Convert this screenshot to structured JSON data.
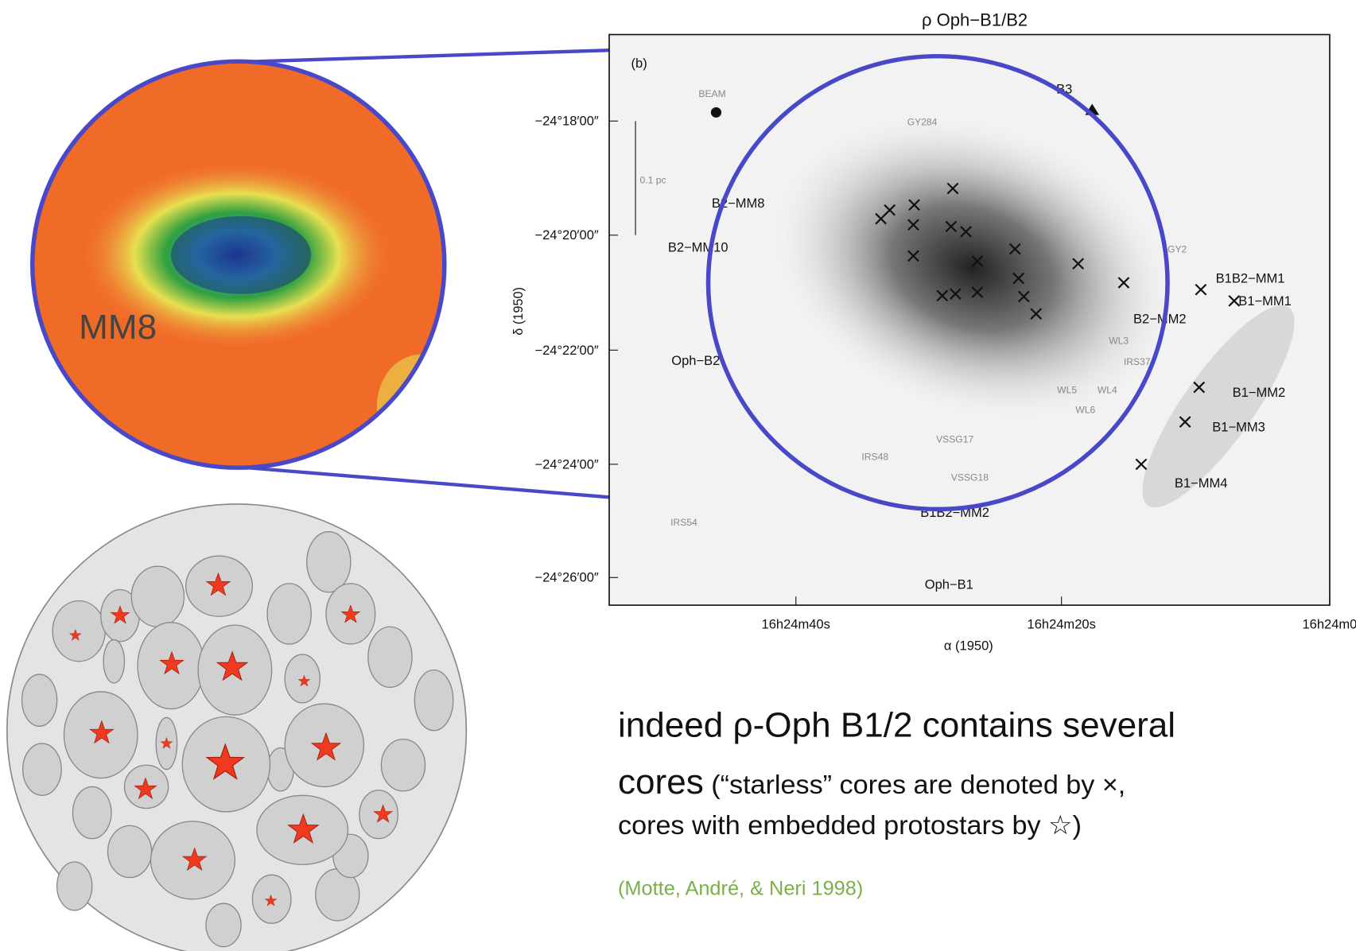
{
  "inset": {
    "label": "MM8"
  },
  "plot": {
    "title": "ρ Oph−B1/B2",
    "y_label": "δ (1950)",
    "x_label": "α (1950)",
    "y_ticks": [
      "−24°18′00″",
      "−24°20′00″",
      "−24°22′00″",
      "−24°24′00″",
      "−24°26′00″"
    ],
    "x_ticks": [
      "16h24m40s",
      "16h24m20s",
      "16h24m0"
    ],
    "labels": [
      "(b)",
      "BEAM",
      "0.1 pc",
      "B3",
      "GY284",
      "B2−MM8",
      "B2−MM10",
      "Oph−B2",
      "B1B2−MM1",
      "B1−MM1",
      "B2−MM2",
      "WL3",
      "IRS37",
      "WL5",
      "WL4",
      "WL6",
      "IRS48",
      "VSSG17",
      "VSSG18",
      "B1B2−MM2",
      "Oph−B1",
      "B1−MM2",
      "B1−MM3",
      "B1−MM4",
      "IRS54",
      "GY2"
    ]
  },
  "text": {
    "line1": "indeed ρ-Oph B1/2 contains several",
    "line2a": "cores",
    "line2b": " (“starless” cores are denoted by ×,",
    "line3": "cores with embedded protostars by ☆)",
    "citation": "(Motte, André, & Neri 1998)"
  }
}
